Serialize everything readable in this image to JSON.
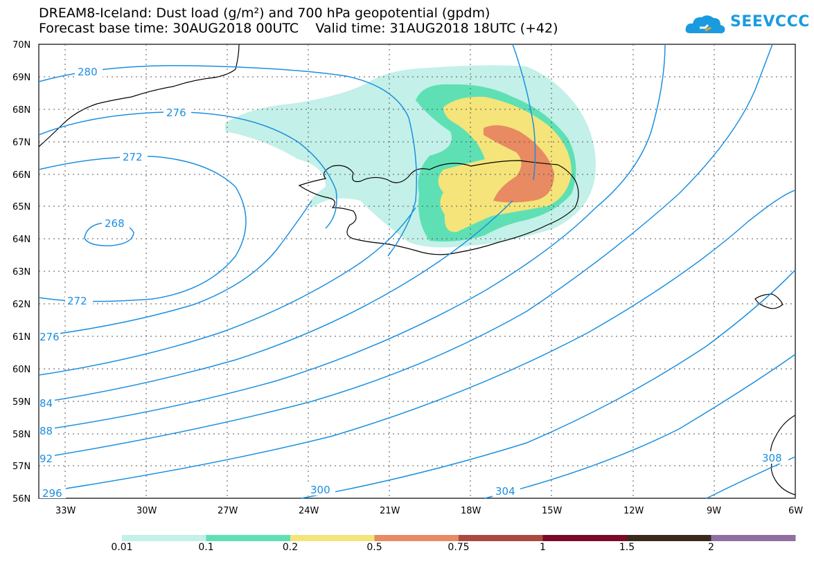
{
  "header": {
    "title_line1": "DREAM8-Iceland: Dust load (g/m²) and 700 hPa geopotential (gpdm)",
    "title_line2": "Forecast base time: 30AUG2018 00UTC    Valid time: 31AUG2018 18UTC (+42)"
  },
  "logo": {
    "text": "SEEVCCC",
    "icon": "cloud-logo-icon",
    "color": "#1a9be0"
  },
  "map": {
    "lat_labels": [
      "70N",
      "69N",
      "68N",
      "67N",
      "66N",
      "65N",
      "64N",
      "63N",
      "62N",
      "61N",
      "60N",
      "59N",
      "58N",
      "57N",
      "56N"
    ],
    "lon_labels": [
      "33W",
      "30W",
      "27W",
      "24W",
      "21W",
      "18W",
      "15W",
      "12W",
      "9W",
      "6W"
    ],
    "contour_color": "#1a8fe0",
    "contour_labels": [
      "280",
      "276",
      "272",
      "268",
      "272",
      "276",
      "84",
      "88",
      "92",
      "296",
      "300",
      "304",
      "308"
    ]
  },
  "colorbar": {
    "colors": [
      "#c3f0e8",
      "#5ee0b4",
      "#f4e47a",
      "#e88a62",
      "#a84a40",
      "#7a0a2a",
      "#3a2a1e",
      "#9070a0"
    ],
    "labels": [
      "0.01",
      "0.1",
      "0.2",
      "0.5",
      "0.75",
      "1",
      "1.5",
      "2"
    ]
  }
}
